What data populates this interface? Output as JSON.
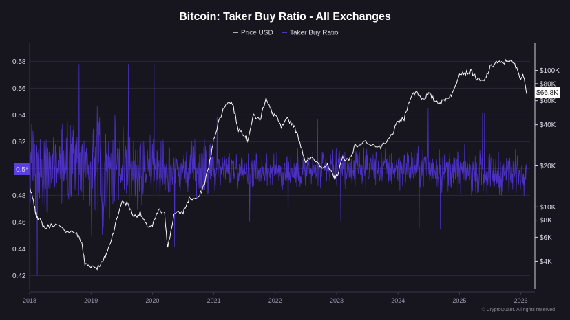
{
  "chart_data": {
    "type": "line",
    "title": "Bitcoin: Taker Buy Ratio - All Exchanges",
    "legend": [
      {
        "name": "Price USD",
        "color": "#ffffff"
      },
      {
        "name": "Taker Buy Ratio",
        "color": "#5b3fe0"
      }
    ],
    "legend_position": "top-center",
    "left_axis": {
      "series": "Taker Buy Ratio",
      "ticks": [
        "0.58",
        "0.56",
        "0.54",
        "0.52",
        "0.5",
        "0.48",
        "0.46",
        "0.44",
        "0.42"
      ],
      "range": [
        0.41,
        0.594
      ],
      "current_badge": "0.5*"
    },
    "right_axis": {
      "series": "Price USD",
      "scale": "log",
      "ticks": [
        "$100K",
        "$80K",
        "$60K",
        "$40K",
        "$20K",
        "$10K",
        "$8K",
        "$6K",
        "$4K"
      ],
      "tick_values": [
        100000,
        80000,
        60000,
        40000,
        20000,
        10000,
        8000,
        6000,
        4000
      ],
      "range": [
        2500,
        160000
      ],
      "current_badge": "$66.8K"
    },
    "x_axis": {
      "ticks": [
        "2018",
        "2019",
        "2020",
        "2021",
        "2022",
        "2023",
        "2024",
        "2025",
        "2026"
      ],
      "range": [
        2018.0,
        2026.15
      ]
    },
    "price_series": {
      "name": "Price USD",
      "x": [
        2018.0,
        2018.05,
        2018.1,
        2018.15,
        2018.25,
        2018.4,
        2018.55,
        2018.75,
        2018.85,
        2018.9,
        2019.0,
        2019.1,
        2019.2,
        2019.3,
        2019.4,
        2019.5,
        2019.6,
        2019.7,
        2019.8,
        2019.9,
        2020.0,
        2020.1,
        2020.2,
        2020.25,
        2020.35,
        2020.5,
        2020.6,
        2020.75,
        2020.85,
        2020.95,
        2021.0,
        2021.1,
        2021.2,
        2021.3,
        2021.4,
        2021.5,
        2021.55,
        2021.65,
        2021.75,
        2021.85,
        2021.95,
        2022.0,
        2022.1,
        2022.2,
        2022.3,
        2022.4,
        2022.5,
        2022.6,
        2022.75,
        2022.85,
        2022.95,
        2023.0,
        2023.1,
        2023.2,
        2023.3,
        2023.5,
        2023.7,
        2023.8,
        2023.9,
        2024.0,
        2024.1,
        2024.2,
        2024.3,
        2024.4,
        2024.5,
        2024.6,
        2024.7,
        2024.8,
        2024.9,
        2025.0,
        2025.1,
        2025.2,
        2025.3,
        2025.4,
        2025.5,
        2025.6,
        2025.7,
        2025.8,
        2025.9,
        2026.0,
        2026.05,
        2026.1
      ],
      "values": [
        14000,
        11500,
        9000,
        8200,
        7000,
        7500,
        6800,
        6500,
        5500,
        3800,
        3700,
        3600,
        4000,
        5200,
        7500,
        11000,
        10500,
        8500,
        9000,
        7300,
        7200,
        9500,
        8800,
        5000,
        8800,
        9200,
        11500,
        11500,
        15000,
        23000,
        32000,
        45000,
        58000,
        58000,
        37000,
        34000,
        31000,
        47000,
        43000,
        64000,
        48000,
        47000,
        38000,
        44000,
        40000,
        30000,
        21000,
        23000,
        20000,
        20000,
        16500,
        16600,
        23000,
        22000,
        28000,
        30000,
        27000,
        29000,
        34000,
        42000,
        44000,
        64000,
        70000,
        62000,
        67000,
        60000,
        58000,
        63000,
        69000,
        97000,
        96000,
        98000,
        85000,
        83000,
        105000,
        115000,
        112000,
        120000,
        110000,
        88000,
        92000,
        66800
      ]
    },
    "ratio_series": {
      "name": "Taker Buy Ratio",
      "x": [
        2018.0,
        2018.5,
        2019.0,
        2019.5,
        2020.0,
        2020.5,
        2021.0,
        2021.5,
        2022.0,
        2022.5,
        2023.0,
        2023.5,
        2024.0,
        2024.5,
        2025.0,
        2025.5,
        2026.0,
        2026.1
      ],
      "mean_values": [
        0.502,
        0.503,
        0.503,
        0.502,
        0.499,
        0.499,
        0.5,
        0.499,
        0.498,
        0.498,
        0.499,
        0.5,
        0.501,
        0.5,
        0.498,
        0.496,
        0.497,
        0.5
      ],
      "range_min": 0.42,
      "range_max": 0.578
    },
    "credit": "© CryptoQuant. All rights reserved"
  }
}
